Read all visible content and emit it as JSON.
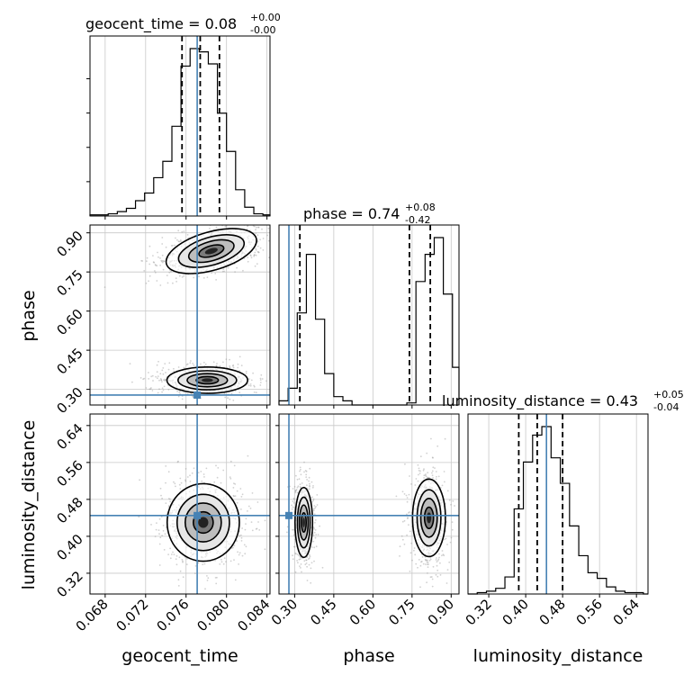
{
  "chart_data": {
    "type": "corner",
    "parameters": [
      "geocent_time",
      "phase",
      "luminosity_distance"
    ],
    "titles": [
      {
        "name": "geocent_time",
        "value": "0.08",
        "upper": "+0.00",
        "lower": "-0.00"
      },
      {
        "name": "phase",
        "value": "0.74",
        "upper": "+0.08",
        "lower": "-0.42"
      },
      {
        "name": "luminosity_distance",
        "value": "0.43",
        "upper": "+0.05",
        "lower": "-0.04"
      }
    ],
    "axes": {
      "geocent_time": {
        "range": [
          0.0665,
          0.0843
        ],
        "ticks": [
          0.068,
          0.072,
          0.076,
          0.08,
          0.084
        ],
        "tick_labels": [
          "0.068",
          "0.072",
          "0.076",
          "0.080",
          "0.084"
        ]
      },
      "phase": {
        "range": [
          0.24,
          0.93
        ],
        "ticks": [
          0.3,
          0.45,
          0.6,
          0.75,
          0.9
        ],
        "tick_labels": [
          "0.30",
          "0.45",
          "0.60",
          "0.75",
          "0.90"
        ]
      },
      "luminosity_distance": {
        "range": [
          0.275,
          0.665
        ],
        "ticks": [
          0.32,
          0.4,
          0.48,
          0.56,
          0.64
        ],
        "tick_labels": [
          "0.32",
          "0.40",
          "0.48",
          "0.56",
          "0.64"
        ]
      }
    },
    "truths": {
      "geocent_time": 0.0771,
      "phase": 0.278,
      "luminosity_distance": 0.445
    },
    "truth_color": "#4682b4",
    "quantiles": {
      "geocent_time": [
        0.0756,
        0.0774,
        0.0793
      ],
      "phase": [
        0.32,
        0.74,
        0.82
      ],
      "luminosity_distance": [
        0.385,
        0.425,
        0.48
      ]
    },
    "histograms": {
      "geocent_time": {
        "edges": [
          0.0665,
          0.0674,
          0.0683,
          0.0692,
          0.0701,
          0.071,
          0.0719,
          0.0728,
          0.0737,
          0.0746,
          0.0755,
          0.0764,
          0.0773,
          0.0782,
          0.0791,
          0.08,
          0.0809,
          0.0818,
          0.0827,
          0.0836,
          0.0843
        ],
        "counts": [
          1,
          1,
          2,
          4,
          7,
          14,
          21,
          35,
          50,
          82,
          137,
          153,
          150,
          139,
          94,
          59,
          24,
          8,
          2,
          1
        ]
      },
      "phase": {
        "edges": [
          0.24,
          0.275,
          0.31,
          0.345,
          0.38,
          0.415,
          0.45,
          0.485,
          0.52,
          0.555,
          0.59,
          0.625,
          0.66,
          0.695,
          0.73,
          0.765,
          0.8,
          0.835,
          0.87,
          0.905,
          0.93
        ],
        "counts": [
          2,
          8,
          44,
          72,
          41,
          15,
          4,
          2,
          0,
          0,
          0,
          0,
          0,
          0,
          1,
          59,
          72,
          80,
          53,
          18
        ]
      },
      "luminosity_distance": {
        "edges": [
          0.275,
          0.295,
          0.315,
          0.335,
          0.355,
          0.375,
          0.395,
          0.415,
          0.435,
          0.455,
          0.475,
          0.495,
          0.515,
          0.535,
          0.555,
          0.575,
          0.595,
          0.615,
          0.635,
          0.655,
          0.665
        ],
        "counts": [
          0,
          1,
          2,
          4,
          12,
          60,
          93,
          112,
          118,
          96,
          78,
          48,
          27,
          15,
          11,
          5,
          2,
          1,
          1,
          0
        ]
      }
    },
    "density_blobs": {
      "geocent_time__phase": [
        {
          "x": 0.0785,
          "y": 0.83,
          "sx": 0.0022,
          "sy": 0.035,
          "rot": -16,
          "w": 1.0
        },
        {
          "x": 0.0781,
          "y": 0.335,
          "sx": 0.0019,
          "sy": 0.024,
          "rot": 0,
          "w": 1.0
        }
      ],
      "geocent_time__luminosity_distance": [
        {
          "x": 0.0777,
          "y": 0.43,
          "sx": 0.0017,
          "sy": 0.04,
          "rot": 0,
          "w": 1.0
        }
      ],
      "phase__luminosity_distance": [
        {
          "x": 0.335,
          "y": 0.43,
          "sx": 0.016,
          "sy": 0.036,
          "rot": 0,
          "w": 1.0
        },
        {
          "x": 0.815,
          "y": 0.44,
          "sx": 0.03,
          "sy": 0.04,
          "rot": 0,
          "w": 1.1
        }
      ]
    }
  }
}
